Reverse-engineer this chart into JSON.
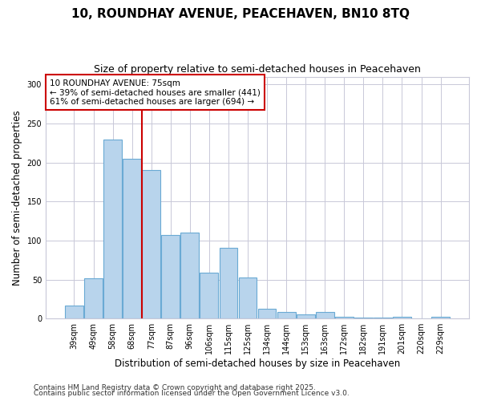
{
  "title": "10, ROUNDHAY AVENUE, PEACEHAVEN, BN10 8TQ",
  "subtitle": "Size of property relative to semi-detached houses in Peacehaven",
  "xlabel": "Distribution of semi-detached houses by size in Peacehaven",
  "ylabel": "Number of semi-detached properties",
  "categories": [
    "39sqm",
    "49sqm",
    "58sqm",
    "68sqm",
    "77sqm",
    "87sqm",
    "96sqm",
    "106sqm",
    "115sqm",
    "125sqm",
    "134sqm",
    "144sqm",
    "153sqm",
    "163sqm",
    "172sqm",
    "182sqm",
    "191sqm",
    "201sqm",
    "220sqm",
    "229sqm"
  ],
  "values": [
    17,
    52,
    229,
    205,
    190,
    107,
    110,
    59,
    91,
    53,
    13,
    8,
    5,
    8,
    2,
    1,
    1,
    2,
    0,
    2
  ],
  "bar_color": "#b8d4ec",
  "bar_edge_color": "#6aaad4",
  "vline_color": "#cc0000",
  "vline_x_index": 3.5,
  "annotation_title": "10 ROUNDHAY AVENUE: 75sqm",
  "annotation_line1": "← 39% of semi-detached houses are smaller (441)",
  "annotation_line2": "61% of semi-detached houses are larger (694) →",
  "annotation_box_color": "#ffffff",
  "annotation_box_edge": "#cc0000",
  "ylim": [
    0,
    310
  ],
  "yticks": [
    0,
    50,
    100,
    150,
    200,
    250,
    300
  ],
  "footer1": "Contains HM Land Registry data © Crown copyright and database right 2025.",
  "footer2": "Contains public sector information licensed under the Open Government Licence v3.0.",
  "background_color": "#ffffff",
  "grid_color": "#c8c8d8",
  "title_fontsize": 11,
  "subtitle_fontsize": 9,
  "tick_fontsize": 7,
  "ylabel_fontsize": 8.5,
  "xlabel_fontsize": 8.5,
  "footer_fontsize": 6.5
}
